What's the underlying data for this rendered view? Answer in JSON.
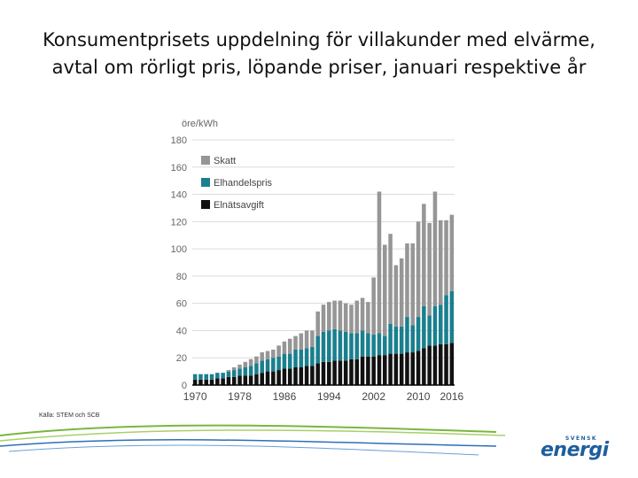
{
  "title": {
    "line1": "Konsumentprisets uppdelning för villakunder med elvärme,",
    "line2": "avtal om rörligt pris, löpande priser, januari respektive år"
  },
  "source": "Källa: STEM och SCB",
  "logo": {
    "top": "SVENSK",
    "word": "energi"
  },
  "colors": {
    "skatt": "#969696",
    "elhandelspris": "#1a7f8e",
    "elnatsavgift": "#111111",
    "grid": "#dcdcdc",
    "brand": "#1d5e9e",
    "swoosh_green": "#7ab640",
    "swoosh_blue": "#2e6fb5"
  },
  "chart_data": {
    "type": "bar",
    "stacked": true,
    "ylabel": "öre/kWh",
    "ylim": [
      0,
      180
    ],
    "yticks": [
      0,
      20,
      40,
      60,
      80,
      100,
      120,
      140,
      160,
      180
    ],
    "xticks": [
      "1970",
      "1978",
      "1986",
      "1994",
      "2002",
      "2010",
      "2016"
    ],
    "grid": true,
    "legend_position": "top-left",
    "categories": [
      "1970",
      "1971",
      "1972",
      "1973",
      "1974",
      "1975",
      "1976",
      "1977",
      "1978",
      "1979",
      "1980",
      "1981",
      "1982",
      "1983",
      "1984",
      "1985",
      "1986",
      "1987",
      "1988",
      "1989",
      "1990",
      "1991",
      "1992",
      "1993",
      "1994",
      "1995",
      "1996",
      "1997",
      "1998",
      "1999",
      "2000",
      "2001",
      "2002",
      "2003",
      "2004",
      "2005",
      "2006",
      "2007",
      "2008",
      "2009",
      "2010",
      "2011",
      "2012",
      "2013",
      "2014",
      "2015",
      "2016"
    ],
    "series": [
      {
        "name": "Elnätsavgift",
        "values": [
          4,
          4,
          4,
          4,
          5,
          5,
          6,
          6,
          7,
          7,
          7,
          8,
          9,
          10,
          10,
          11,
          12,
          12,
          13,
          13,
          14,
          14,
          16,
          17,
          17,
          18,
          18,
          18,
          19,
          19,
          21,
          21,
          21,
          22,
          22,
          23,
          23,
          23,
          24,
          24,
          25,
          27,
          29,
          29,
          30,
          30,
          31
        ]
      },
      {
        "name": "Elhandelspris",
        "values": [
          4,
          4,
          4,
          4,
          4,
          4,
          4,
          5,
          5,
          6,
          7,
          8,
          9,
          9,
          10,
          10,
          11,
          11,
          13,
          13,
          13,
          14,
          20,
          22,
          23,
          23,
          22,
          21,
          19,
          19,
          19,
          17,
          16,
          16,
          14,
          22,
          20,
          20,
          26,
          20,
          25,
          31,
          22,
          29,
          29,
          36,
          38
        ]
      },
      {
        "name": "Skatt",
        "values": [
          0,
          0,
          0,
          0,
          0,
          0,
          1,
          2,
          3,
          4,
          5,
          5,
          6,
          6,
          6,
          8,
          9,
          11,
          10,
          12,
          13,
          12,
          18,
          20,
          21,
          21,
          22,
          21,
          21,
          24,
          24,
          23,
          42,
          104,
          67,
          66,
          45,
          50,
          54,
          60,
          70,
          75,
          68,
          84,
          62,
          55,
          56
        ]
      }
    ]
  }
}
